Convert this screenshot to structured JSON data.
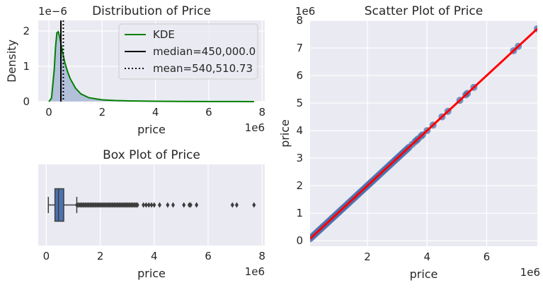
{
  "chart_data": [
    {
      "type": "area",
      "title": "Distribution of Price",
      "xlabel": "price",
      "ylabel": "Density",
      "x_offset_text": "1e6",
      "y_offset_text": "1e−6",
      "xlim": [
        -0.4,
        8.1
      ],
      "ylim": [
        0,
        2.3
      ],
      "x_ticks": [
        0,
        2,
        4,
        6,
        8
      ],
      "y_ticks": [
        0,
        1,
        2
      ],
      "grid": true,
      "legend_position": "top-right",
      "kde": {
        "name": "KDE",
        "color": "#008000",
        "x": [
          0.0,
          0.1,
          0.2,
          0.25,
          0.3,
          0.35,
          0.4,
          0.45,
          0.5,
          0.6,
          0.7,
          0.8,
          1.0,
          1.2,
          1.5,
          2.0,
          2.5,
          3.0,
          4.0,
          5.0,
          6.0,
          7.0,
          7.7
        ],
        "y": [
          0.0,
          0.1,
          0.9,
          1.55,
          1.95,
          1.98,
          1.85,
          1.65,
          1.45,
          1.1,
          0.85,
          0.65,
          0.38,
          0.22,
          0.11,
          0.05,
          0.03,
          0.02,
          0.01,
          0.005,
          0.003,
          0.002,
          0.001
        ]
      },
      "lines": [
        {
          "name": "median=450,000.0",
          "value": 0.45,
          "style": "solid",
          "color": "#000000"
        },
        {
          "name": "mean=540,510.73",
          "value": 0.5405,
          "style": "dotted",
          "color": "#000000"
        }
      ]
    },
    {
      "type": "box",
      "title": "Box Plot of Price",
      "xlabel": "price",
      "x_offset_text": "1e6",
      "xlim": [
        -0.3,
        8.1
      ],
      "x_ticks": [
        0,
        2,
        4,
        6,
        8
      ],
      "grid": true,
      "color": "#4c72b0",
      "whisker_low": 0.075,
      "q1": 0.32,
      "median": 0.45,
      "q3": 0.645,
      "whisker_high": 1.13,
      "outliers_dense_range": [
        1.13,
        3.4
      ],
      "outliers": [
        3.6,
        3.7,
        3.8,
        3.9,
        4.0,
        4.2,
        4.5,
        4.7,
        5.1,
        5.3,
        5.35,
        5.57,
        6.9,
        7.06,
        7.7
      ]
    },
    {
      "type": "scatter",
      "title": "Scatter Plot of Price",
      "xlabel": "price",
      "ylabel": "price",
      "x_offset_text": "1e6",
      "y_offset_text": "1e6",
      "xlim": [
        0.075,
        7.7
      ],
      "ylim": [
        -0.2,
        8.0
      ],
      "x_ticks": [
        2,
        4,
        6
      ],
      "y_ticks": [
        0,
        1,
        2,
        3,
        4,
        5,
        6,
        7,
        8
      ],
      "grid": true,
      "point_color": "#4c72b0",
      "line_color": "#ff0000",
      "dense_range": [
        0.075,
        3.4
      ],
      "points": [
        3.5,
        3.6,
        3.65,
        3.7,
        3.8,
        3.85,
        4.0,
        4.2,
        4.5,
        4.7,
        5.1,
        5.3,
        5.35,
        5.57,
        6.9,
        7.06,
        7.7
      ]
    }
  ]
}
